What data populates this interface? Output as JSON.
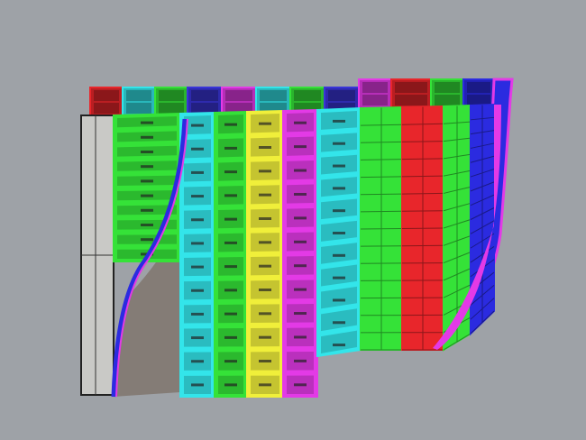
{
  "viewport": {
    "background": "#9ea2a7"
  },
  "back_row_colors": [
    "#e8262b",
    "#33e5ea",
    "#35e238",
    "#3a35d8",
    "#e33ae6",
    "#33e5ea",
    "#35e238",
    "#3a35d8",
    "#e33ae6",
    "#e8262b",
    "#35e238",
    "#2b2be0"
  ],
  "front_columns": [
    {
      "color": "#35e238",
      "rows": 10
    },
    {
      "color": "#33e5ea",
      "rows": 12
    },
    {
      "color": "#35e238",
      "rows": 12
    },
    {
      "color": "#f0ef3a",
      "rows": 12
    },
    {
      "color": "#e33ae6",
      "rows": 12
    },
    {
      "color": "#33e5ea",
      "rows": 11
    },
    {
      "color": "#35e238",
      "rows": 14
    },
    {
      "color": "#e8262b",
      "rows": 14
    },
    {
      "color": "#35e238",
      "rows": 14
    },
    {
      "color": "#2b2be0",
      "rows": 16
    }
  ],
  "frame_color": "#c9c9c6",
  "shadow_color": "#847c76"
}
